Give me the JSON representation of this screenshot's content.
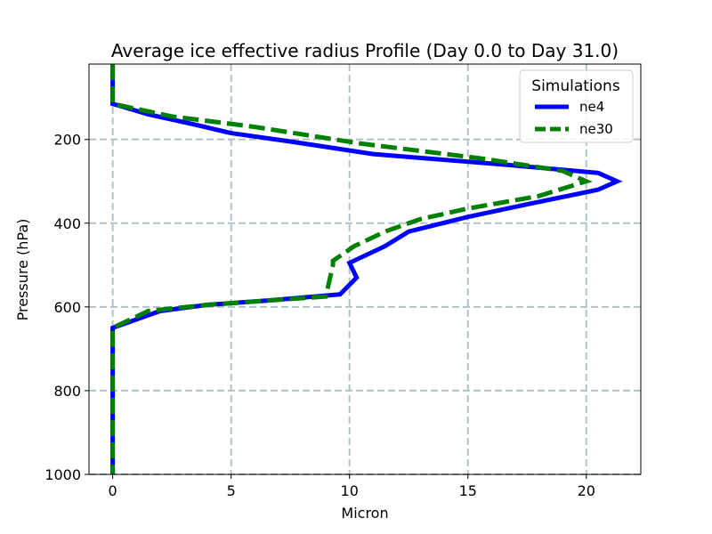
{
  "chart_data": {
    "type": "line",
    "title": "Average ice effective radius Profile (Day 0.0 to Day 31.0)",
    "xlabel": "Micron",
    "ylabel": "Pressure (hPa)",
    "xlim": [
      -1.0,
      22.3
    ],
    "ylim": [
      1000,
      20
    ],
    "y_inverted": true,
    "grid": true,
    "x_ticks": [
      0,
      5,
      10,
      15,
      20
    ],
    "x_tick_labels": [
      "0",
      "5",
      "10",
      "15",
      "20"
    ],
    "y_ticks": [
      200,
      400,
      600,
      800,
      1000
    ],
    "y_tick_labels": [
      "200",
      "400",
      "600",
      "800",
      "1000"
    ],
    "legend": {
      "title": "Simulations",
      "location": "top-right"
    },
    "series": [
      {
        "name": "ne4",
        "color": "#0000ff",
        "style": "solid",
        "x": [
          0,
          0,
          0.3,
          1.5,
          3.5,
          5.0,
          7.5,
          11.0,
          16.5,
          20.5,
          21.3,
          20.5,
          17.5,
          15.0,
          12.5,
          11.5,
          10.0,
          10.3,
          9.6,
          6.5,
          4.0,
          2.0,
          0,
          0,
          0
        ],
        "y": [
          20,
          115,
          120,
          140,
          165,
          185,
          205,
          235,
          260,
          280,
          300,
          320,
          355,
          385,
          420,
          455,
          495,
          530,
          570,
          585,
          595,
          610,
          650,
          800,
          1000
        ]
      },
      {
        "name": "ne30",
        "color": "#008000",
        "style": "dashed",
        "x": [
          0,
          0,
          0.4,
          2.5,
          6.0,
          10.5,
          15.5,
          19.0,
          20.0,
          18.0,
          15.0,
          13.0,
          11.5,
          10.2,
          9.3,
          9.3,
          9.0,
          4.0,
          1.5,
          0,
          0,
          0
        ],
        "y": [
          20,
          115,
          120,
          145,
          170,
          210,
          245,
          275,
          300,
          335,
          365,
          390,
          420,
          455,
          490,
          500,
          575,
          595,
          610,
          650,
          800,
          1000
        ]
      }
    ]
  }
}
